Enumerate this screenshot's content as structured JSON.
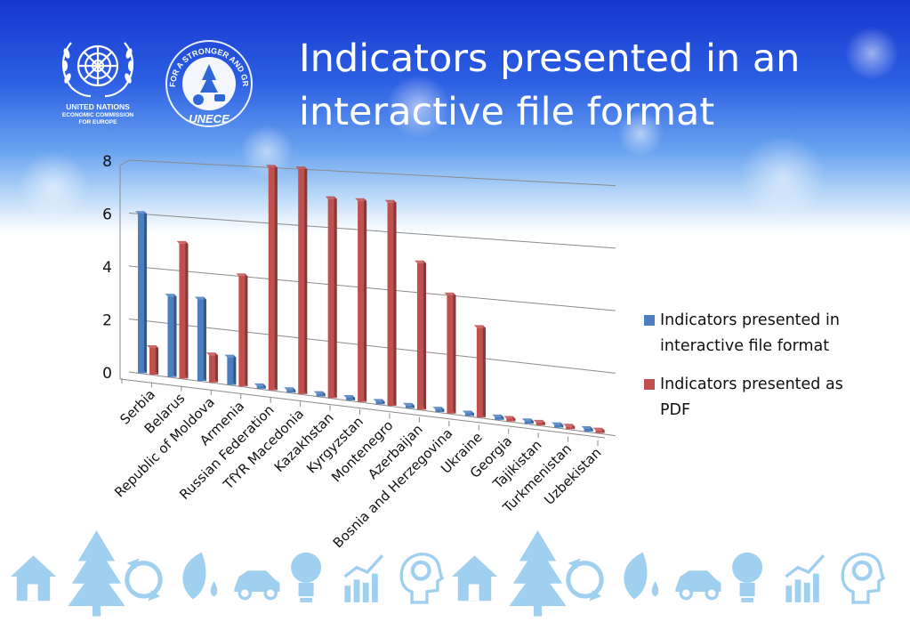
{
  "slide": {
    "title": "Indicators presented in an interactive file format",
    "colors": {
      "sky_top": "#1a3fd6",
      "sky_mid": "#5f9cf0",
      "icon_color": "#9fd0ef"
    }
  },
  "logos": {
    "un": {
      "name": "UNITED NATIONS",
      "line2": "ECONOMIC COMMISSION",
      "line3": "FOR EUROPE"
    },
    "unece": {
      "text": "FOR A STRONGER AND GREENER ECONOMY",
      "brand": "UNECE"
    }
  },
  "footer_icons": [
    "house-icon",
    "tree-icon",
    "recycle-globe-icon",
    "leaf-drop-icon",
    "car-icon",
    "bulb-icon",
    "growth-chart-icon",
    "head-gear-icon"
  ],
  "chart_data": {
    "type": "bar",
    "title": "",
    "xlabel": "",
    "ylabel": "",
    "ylim": [
      0,
      8
    ],
    "yticks": [
      "0",
      "2",
      "4",
      "6",
      "8"
    ],
    "categories": [
      "Serbia",
      "Belarus",
      "Republic of Moldova",
      "Armenia",
      "Russian Federation",
      "TfYR Macedonia",
      "Kazakhstan",
      "Kyrgyzstan",
      "Montenegro",
      "Azerbaijan",
      "Bosnia and Herzegovina",
      "Ukraine",
      "Georgia",
      "Tajikistan",
      "Turkmenistan",
      "Uzbekistan"
    ],
    "series": [
      {
        "name": "Indicators presented in interactive file format",
        "color": "#4a7ebf",
        "values": [
          6,
          3,
          3,
          1,
          0,
          0,
          0,
          0,
          0,
          0,
          0,
          0,
          0,
          0,
          0,
          0
        ]
      },
      {
        "name": "Indicators presented as PDF",
        "color": "#c0504d",
        "values": [
          1,
          5,
          1,
          4,
          8,
          8,
          7,
          7,
          7,
          5,
          4,
          3,
          0,
          0,
          0,
          0
        ]
      }
    ],
    "grid": true,
    "style": "3d-perspective",
    "legend_position": "right"
  }
}
